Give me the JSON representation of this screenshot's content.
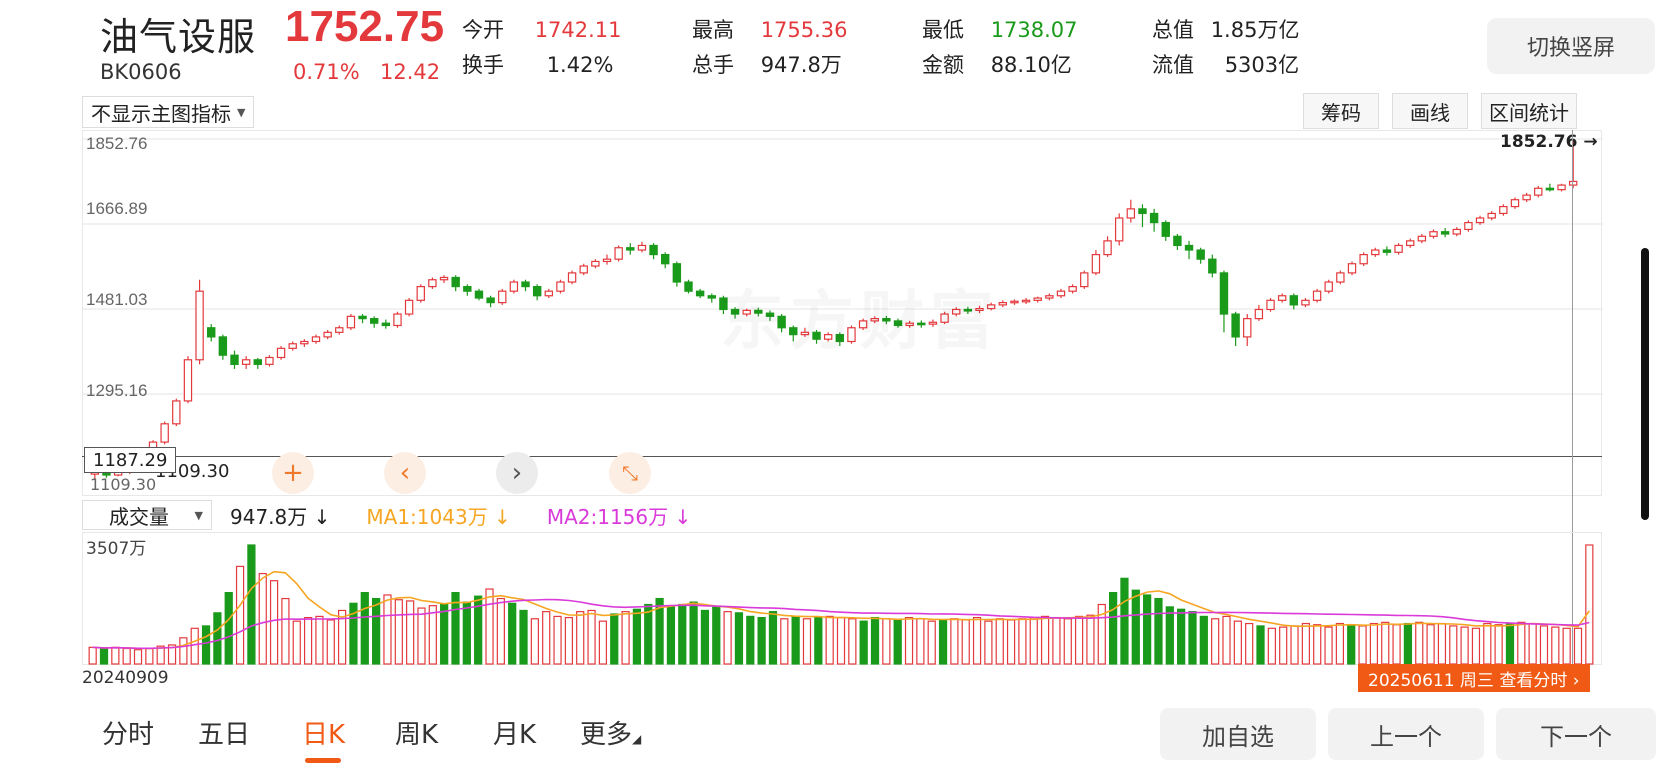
{
  "header": {
    "name": "油气设服",
    "code": "BK0606",
    "price": "1752.75",
    "change_pct": "0.71%",
    "change": "12.42",
    "stats": [
      {
        "label": "今开",
        "value": "1742.11",
        "color": "red"
      },
      {
        "label": "最高",
        "value": "1755.36",
        "color": "red"
      },
      {
        "label": "最低",
        "value": "1738.07",
        "color": "green"
      },
      {
        "label": "总值",
        "value": "1.85万亿",
        "color": "black"
      },
      {
        "label": "换手",
        "value": "1.42%",
        "color": "black"
      },
      {
        "label": "总手",
        "value": "947.8万",
        "color": "black"
      },
      {
        "label": "金额",
        "value": "88.10亿",
        "color": "black"
      },
      {
        "label": "流值",
        "value": "5303亿",
        "color": "black"
      }
    ],
    "toggle_label": "切换竖屏"
  },
  "toolbar": {
    "indicator": "不显示主图指标",
    "chips": "筹码",
    "draw": "画线",
    "range_stats": "区间统计"
  },
  "main_chart": {
    "y_labels": [
      "1852.76",
      "1666.89",
      "1481.03",
      "1295.16"
    ],
    "crosshair_price": "1187.29",
    "low_price": "1109.30",
    "low_price_dup": "1109.30",
    "high_price": "1852.76",
    "watermark": "东方财富"
  },
  "volume": {
    "selector": "成交量",
    "current": "947.8万",
    "ma1": "MA1:1043万",
    "ma2": "MA2:1156万",
    "max_label": "3507万",
    "start_date": "20240909",
    "end_date": "20250611 周三 查看分时 ›"
  },
  "tabs": [
    "分时",
    "五日",
    "日K",
    "周K",
    "月K",
    "更多"
  ],
  "actions": {
    "add": "加自选",
    "prev": "上一个",
    "next": "下一个"
  },
  "colors": {
    "up": "#e4393c",
    "down": "#1a9a1a",
    "ma1": "#f6a623",
    "ma2": "#d93ad9",
    "accent": "#f05a14"
  },
  "chart_data": {
    "type": "candlestick",
    "y_range": [
      1109.3,
      1852.76
    ],
    "volume_max_wan": 3507,
    "candles": [
      [
        1120,
        1125,
        1110,
        1128
      ],
      [
        1124,
        1118,
        1112,
        1127
      ],
      [
        1118,
        1126,
        1115,
        1130
      ],
      [
        1126,
        1130,
        1120,
        1134
      ],
      [
        1130,
        1150,
        1128,
        1154
      ],
      [
        1150,
        1190,
        1148,
        1194
      ],
      [
        1190,
        1230,
        1185,
        1235
      ],
      [
        1230,
        1280,
        1225,
        1285
      ],
      [
        1280,
        1370,
        1275,
        1378
      ],
      [
        1370,
        1520,
        1360,
        1545
      ],
      [
        1440,
        1420,
        1410,
        1448
      ],
      [
        1420,
        1380,
        1370,
        1425
      ],
      [
        1380,
        1360,
        1350,
        1390
      ],
      [
        1360,
        1370,
        1350,
        1378
      ],
      [
        1370,
        1360,
        1350,
        1374
      ],
      [
        1360,
        1375,
        1355,
        1380
      ],
      [
        1375,
        1395,
        1370,
        1400
      ],
      [
        1395,
        1405,
        1390,
        1410
      ],
      [
        1405,
        1410,
        1398,
        1415
      ],
      [
        1410,
        1420,
        1405,
        1425
      ],
      [
        1420,
        1430,
        1415,
        1435
      ],
      [
        1430,
        1440,
        1425,
        1445
      ],
      [
        1440,
        1465,
        1435,
        1470
      ],
      [
        1465,
        1460,
        1450,
        1470
      ],
      [
        1460,
        1450,
        1440,
        1465
      ],
      [
        1450,
        1445,
        1438,
        1458
      ],
      [
        1445,
        1470,
        1440,
        1475
      ],
      [
        1470,
        1500,
        1465,
        1505
      ],
      [
        1500,
        1530,
        1495,
        1535
      ],
      [
        1530,
        1545,
        1525,
        1550
      ],
      [
        1545,
        1550,
        1538,
        1555
      ],
      [
        1550,
        1530,
        1520,
        1555
      ],
      [
        1530,
        1520,
        1510,
        1535
      ],
      [
        1520,
        1505,
        1500,
        1525
      ],
      [
        1505,
        1495,
        1485,
        1510
      ],
      [
        1495,
        1520,
        1490,
        1525
      ],
      [
        1520,
        1540,
        1515,
        1545
      ],
      [
        1540,
        1530,
        1520,
        1545
      ],
      [
        1530,
        1510,
        1500,
        1535
      ],
      [
        1510,
        1520,
        1505,
        1525
      ],
      [
        1520,
        1540,
        1515,
        1545
      ],
      [
        1540,
        1560,
        1535,
        1565
      ],
      [
        1560,
        1575,
        1555,
        1580
      ],
      [
        1575,
        1585,
        1570,
        1590
      ],
      [
        1585,
        1590,
        1578,
        1600
      ],
      [
        1590,
        1615,
        1585,
        1620
      ],
      [
        1615,
        1610,
        1600,
        1625
      ],
      [
        1610,
        1620,
        1605,
        1628
      ],
      [
        1620,
        1600,
        1590,
        1625
      ],
      [
        1600,
        1580,
        1570,
        1605
      ],
      [
        1580,
        1540,
        1530,
        1585
      ],
      [
        1540,
        1520,
        1515,
        1545
      ],
      [
        1520,
        1510,
        1505,
        1525
      ],
      [
        1510,
        1505,
        1495,
        1515
      ],
      [
        1505,
        1480,
        1470,
        1510
      ],
      [
        1480,
        1470,
        1460,
        1485
      ],
      [
        1470,
        1478,
        1465,
        1482
      ],
      [
        1478,
        1472,
        1465,
        1484
      ],
      [
        1472,
        1465,
        1455,
        1478
      ],
      [
        1465,
        1440,
        1430,
        1470
      ],
      [
        1440,
        1425,
        1410,
        1445
      ],
      [
        1425,
        1430,
        1420,
        1440
      ],
      [
        1430,
        1415,
        1405,
        1435
      ],
      [
        1415,
        1425,
        1410,
        1430
      ],
      [
        1425,
        1410,
        1400,
        1430
      ],
      [
        1410,
        1440,
        1405,
        1445
      ],
      [
        1440,
        1455,
        1435,
        1460
      ],
      [
        1455,
        1460,
        1450,
        1465
      ],
      [
        1460,
        1455,
        1448,
        1466
      ],
      [
        1455,
        1445,
        1440,
        1460
      ],
      [
        1445,
        1450,
        1440,
        1455
      ],
      [
        1450,
        1448,
        1440,
        1456
      ],
      [
        1448,
        1452,
        1442,
        1458
      ],
      [
        1452,
        1470,
        1448,
        1475
      ],
      [
        1470,
        1480,
        1465,
        1485
      ],
      [
        1480,
        1478,
        1470,
        1486
      ],
      [
        1478,
        1482,
        1472,
        1488
      ],
      [
        1482,
        1490,
        1478,
        1495
      ],
      [
        1490,
        1495,
        1485,
        1500
      ],
      [
        1495,
        1498,
        1490,
        1502
      ],
      [
        1498,
        1500,
        1492,
        1505
      ],
      [
        1500,
        1505,
        1495,
        1508
      ],
      [
        1505,
        1510,
        1500,
        1515
      ],
      [
        1510,
        1520,
        1505,
        1525
      ],
      [
        1520,
        1530,
        1515,
        1535
      ],
      [
        1530,
        1560,
        1525,
        1565
      ],
      [
        1560,
        1600,
        1555,
        1610
      ],
      [
        1600,
        1630,
        1595,
        1640
      ],
      [
        1630,
        1680,
        1620,
        1690
      ],
      [
        1680,
        1700,
        1670,
        1720
      ],
      [
        1700,
        1690,
        1660,
        1710
      ],
      [
        1690,
        1670,
        1650,
        1700
      ],
      [
        1670,
        1640,
        1630,
        1675
      ],
      [
        1640,
        1620,
        1610,
        1645
      ],
      [
        1620,
        1610,
        1590,
        1630
      ],
      [
        1610,
        1590,
        1580,
        1615
      ],
      [
        1590,
        1560,
        1550,
        1600
      ],
      [
        1560,
        1470,
        1430,
        1565
      ],
      [
        1470,
        1420,
        1400,
        1475
      ],
      [
        1420,
        1460,
        1400,
        1470
      ],
      [
        1460,
        1480,
        1455,
        1490
      ],
      [
        1480,
        1500,
        1475,
        1505
      ],
      [
        1500,
        1510,
        1495,
        1515
      ],
      [
        1510,
        1490,
        1480,
        1515
      ],
      [
        1490,
        1500,
        1485,
        1505
      ],
      [
        1500,
        1520,
        1495,
        1525
      ],
      [
        1520,
        1540,
        1515,
        1545
      ],
      [
        1540,
        1560,
        1535,
        1565
      ],
      [
        1560,
        1580,
        1555,
        1585
      ],
      [
        1580,
        1600,
        1575,
        1605
      ],
      [
        1600,
        1610,
        1595,
        1615
      ],
      [
        1610,
        1605,
        1598,
        1618
      ],
      [
        1605,
        1620,
        1600,
        1625
      ],
      [
        1620,
        1630,
        1615,
        1635
      ],
      [
        1630,
        1640,
        1625,
        1645
      ],
      [
        1640,
        1650,
        1635,
        1655
      ],
      [
        1650,
        1645,
        1638,
        1658
      ],
      [
        1645,
        1655,
        1640,
        1660
      ],
      [
        1655,
        1670,
        1650,
        1675
      ],
      [
        1670,
        1680,
        1665,
        1685
      ],
      [
        1680,
        1690,
        1675,
        1695
      ],
      [
        1690,
        1705,
        1685,
        1710
      ],
      [
        1705,
        1720,
        1700,
        1725
      ],
      [
        1720,
        1730,
        1715,
        1735
      ],
      [
        1730,
        1745,
        1725,
        1750
      ],
      [
        1745,
        1742,
        1738,
        1755
      ],
      [
        1742,
        1752,
        1738,
        1755
      ],
      [
        1752,
        1760,
        1745,
        1852
      ]
    ],
    "volumes": [
      14,
      13,
      14,
      13,
      12,
      13,
      15,
      16,
      22,
      30,
      32,
      43,
      60,
      82,
      100,
      76,
      70,
      55,
      36,
      39,
      40,
      37,
      45,
      51,
      60,
      55,
      58,
      54,
      53,
      47,
      49,
      50,
      60,
      52,
      57,
      63,
      55,
      51,
      45,
      38,
      44,
      40,
      39,
      44,
      45,
      36,
      42,
      44,
      46,
      50,
      55,
      48,
      50,
      52,
      45,
      48,
      44,
      43,
      40,
      39,
      44,
      38,
      40,
      38,
      39,
      40,
      39,
      38,
      36,
      39,
      38,
      37,
      39,
      38,
      36,
      37,
      38,
      37,
      39,
      36,
      38,
      37,
      38,
      39,
      40,
      39,
      38,
      40,
      41,
      50,
      60,
      72,
      62,
      58,
      55,
      48,
      46,
      44,
      40,
      38,
      40,
      36,
      34,
      32,
      30,
      31,
      32,
      34,
      33,
      31,
      34,
      33,
      32,
      34,
      35,
      33,
      34,
      35,
      33,
      34,
      32,
      31,
      30,
      34,
      33,
      34,
      35,
      34,
      32,
      31,
      30,
      30,
      100
    ]
  }
}
